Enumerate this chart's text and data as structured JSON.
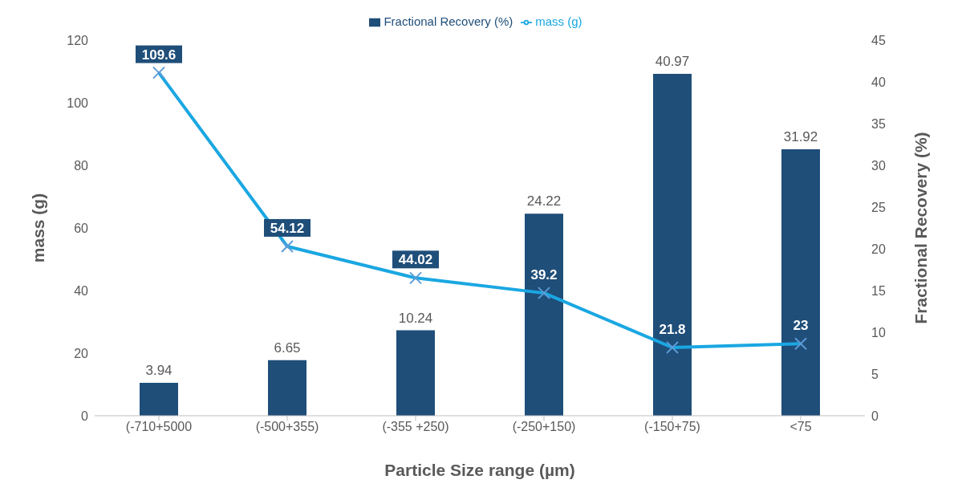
{
  "chart_data": {
    "type": "bar",
    "xlabel": "Particle Size  range (µm)",
    "ylabel": "mass (g)",
    "y2label": "Fractional  Recovery (%)",
    "categories": [
      "(-710+5000",
      "(-500+355)",
      "(-355 +250)",
      "(-250+150)",
      "(-150+75)",
      "<75"
    ],
    "series": [
      {
        "name": "Fractional  Recovery (%)",
        "axis": "y2",
        "color": "#1f4e79",
        "values": [
          3.94,
          6.65,
          10.24,
          24.22,
          40.97,
          31.92
        ]
      },
      {
        "name": "mass (g)",
        "type": "line",
        "axis": "y",
        "color": "#1aa7e2",
        "values": [
          109.6,
          54.12,
          44.02,
          39.2,
          21.8,
          23
        ]
      }
    ],
    "ylim": [
      0,
      120
    ],
    "yticks": [
      0,
      20,
      40,
      60,
      80,
      100,
      120
    ],
    "y2lim": [
      0,
      45
    ],
    "y2ticks": [
      0,
      5,
      10,
      15,
      20,
      25,
      30,
      35,
      40,
      45
    ],
    "data_labels": true,
    "grid": false,
    "legend": "top",
    "marker": "cross",
    "line_style": "solid"
  }
}
